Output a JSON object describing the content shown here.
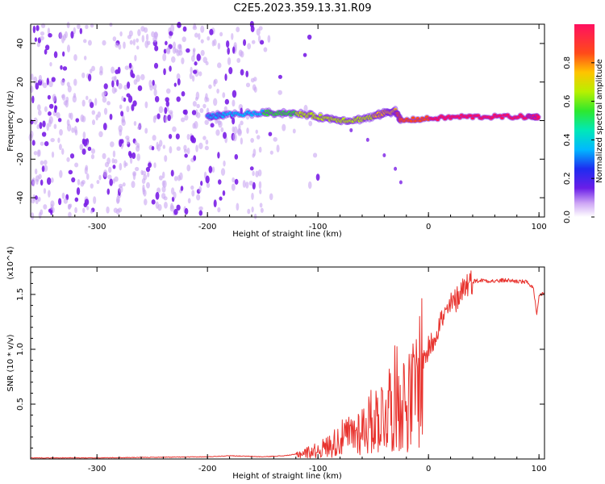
{
  "title": "C2E5.2023.359.13.31.R09",
  "colors": {
    "snr_line": "#e8332e",
    "scatter_main": "#7a1ee6",
    "scatter_light": "#c9a6f2"
  },
  "chart_data": [
    {
      "type": "heatmap",
      "id": "spectrogram",
      "xlabel": "Height of straight line (km)",
      "ylabel": "Frequency (Hz)",
      "xlim": [
        -360,
        105
      ],
      "ylim": [
        -50,
        50
      ],
      "x_ticks": [
        -300,
        -200,
        -100,
        0,
        100
      ],
      "x_tick_labels": [
        "-300",
        "-200",
        "-100",
        "0",
        "100"
      ],
      "y_ticks": [
        -40,
        -20,
        0,
        20,
        40
      ],
      "y_tick_labels": [
        "-40",
        "-20",
        "0",
        "20",
        "40"
      ],
      "colorbar": {
        "label": "Normalized spectral amplitude",
        "range": [
          0,
          1
        ],
        "ticks": [
          0,
          0.2,
          0.4,
          0.6,
          0.8
        ],
        "tick_labels": [
          "0.0",
          "0.2",
          "0.4",
          "0.6",
          "0.8"
        ]
      },
      "ridge": {
        "description": "strong signal band near 0-5 Hz",
        "x": [
          -200,
          -185,
          -150,
          -130,
          -110,
          -90,
          -70,
          -50,
          -40,
          -30,
          -25,
          0,
          30,
          60,
          90,
          100
        ],
        "freq_hz": [
          2,
          3,
          4,
          4,
          3,
          1,
          0,
          2,
          4,
          5,
          0,
          1,
          2,
          2,
          2,
          2
        ],
        "amplitude": [
          0.25,
          0.3,
          0.35,
          0.45,
          0.55,
          0.55,
          0.6,
          0.65,
          0.7,
          0.75,
          0.8,
          0.85,
          0.9,
          0.95,
          0.9,
          0.85
        ]
      },
      "branch": {
        "x": [
          -70,
          -55,
          -40,
          -30,
          -25
        ],
        "freq_hz": [
          -5,
          -10,
          -18,
          -25,
          -32
        ]
      }
    },
    {
      "type": "line",
      "id": "snr",
      "xlabel": "Height of straight line (km)",
      "ylabel": "SNR (10 * v/v)",
      "scale_label": "(x10^4)",
      "xlim": [
        -360,
        105
      ],
      "ylim": [
        0,
        1.75
      ],
      "x_ticks": [
        -300,
        -200,
        -100,
        0,
        100
      ],
      "x_tick_labels": [
        "-300",
        "-200",
        "-100",
        "0",
        "100"
      ],
      "y_ticks": [
        0.5,
        1.0,
        1.5
      ],
      "y_tick_labels": [
        "0.5",
        "1.0",
        "1.5"
      ],
      "series": [
        {
          "name": "SNR",
          "x": [
            -360,
            -300,
            -200,
            -180,
            -150,
            -130,
            -115,
            -100,
            -90,
            -80,
            -70,
            -60,
            -50,
            -40,
            -35,
            -30,
            -25,
            -20,
            -15,
            -10,
            -5,
            0,
            5,
            10,
            15,
            20,
            25,
            30,
            35,
            40,
            50,
            60,
            70,
            80,
            90,
            95,
            98,
            100,
            102,
            105
          ],
          "y": [
            0.01,
            0.01,
            0.02,
            0.03,
            0.02,
            0.03,
            0.05,
            0.08,
            0.12,
            0.18,
            0.22,
            0.28,
            0.35,
            0.42,
            0.5,
            0.55,
            0.58,
            0.5,
            0.55,
            0.7,
            0.9,
            1.0,
            1.1,
            1.25,
            1.3,
            1.4,
            1.45,
            1.55,
            1.6,
            1.62,
            1.63,
            1.62,
            1.63,
            1.62,
            1.61,
            1.55,
            1.3,
            1.48,
            1.5,
            1.52
          ]
        }
      ]
    }
  ]
}
